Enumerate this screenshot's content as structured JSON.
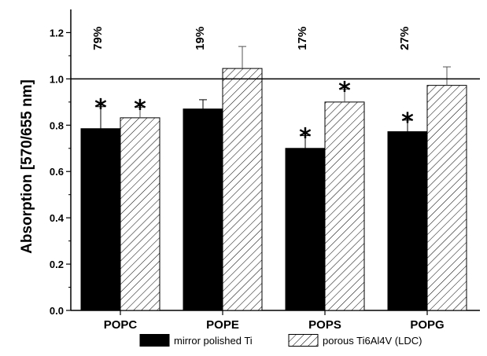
{
  "chart_data": {
    "type": "bar",
    "title": "",
    "xlabel": "",
    "ylabel": "Absorption [570/655 nm]",
    "ylim": [
      0,
      1.3
    ],
    "yticks": [
      0.0,
      0.2,
      0.4,
      0.6,
      0.8,
      1.0,
      1.2
    ],
    "ytick_labels": [
      "0.0",
      "0.2",
      "0.4",
      "0.6",
      "0.8",
      "1.0",
      "1.2"
    ],
    "categories": [
      "POPC",
      "POPE",
      "POPS",
      "POPG"
    ],
    "series": [
      {
        "name": "mirror polished Ti",
        "values": [
          0.785,
          0.87,
          0.7,
          0.772
        ],
        "errors": [
          0.095,
          0.04,
          0.055,
          0.05
        ],
        "significant": [
          true,
          false,
          true,
          true
        ],
        "fill": "solid",
        "color": "#000000"
      },
      {
        "name": "porous Ti6Al4V (LDC)",
        "values": [
          0.832,
          1.045,
          0.9,
          0.972
        ],
        "errors": [
          0.045,
          0.095,
          0.055,
          0.08
        ],
        "significant": [
          true,
          false,
          true,
          false
        ],
        "fill": "hatched",
        "color": "#ffffff"
      }
    ],
    "reference_line": 1.0,
    "annotations": [
      "79%",
      "19%",
      "17%",
      "27%"
    ],
    "significance_marker": "*",
    "legend_position": "bottom",
    "grid": false
  }
}
